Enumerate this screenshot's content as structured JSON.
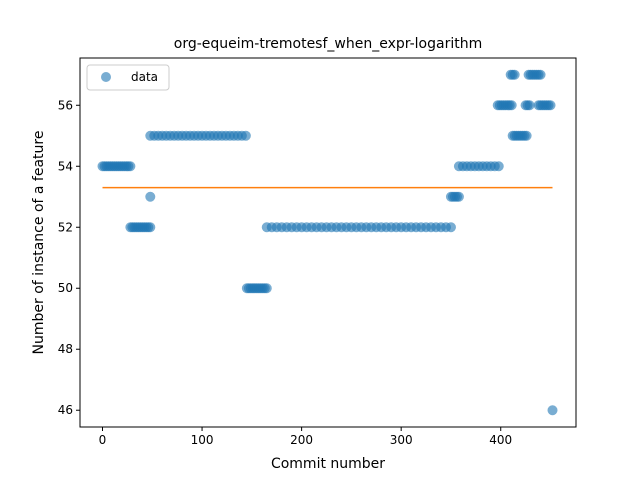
{
  "chart_data": {
    "type": "scatter",
    "title": "org-equeim-tremotesf_when_expr-logarithm",
    "xlabel": "Commit number",
    "ylabel": "Number of instance of a feature",
    "xlim": [
      -22.6,
      475.6
    ],
    "ylim": [
      45.45,
      57.55
    ],
    "xticks": [
      0,
      100,
      200,
      300,
      400
    ],
    "yticks": [
      46,
      48,
      50,
      52,
      54,
      56
    ],
    "legend_position": "upper left",
    "grid": false,
    "series": [
      {
        "name": "data",
        "kind": "points",
        "color": "#1f77b4",
        "x": [
          0,
          2,
          4,
          6,
          8,
          10,
          12,
          14,
          16,
          18,
          20,
          22,
          24,
          26,
          28,
          28,
          30,
          32,
          34,
          36,
          38,
          40,
          42,
          44,
          46,
          48,
          48,
          48,
          52,
          56,
          60,
          64,
          68,
          72,
          76,
          80,
          84,
          88,
          92,
          96,
          100,
          104,
          108,
          112,
          116,
          120,
          124,
          128,
          132,
          136,
          140,
          144,
          145,
          147,
          149,
          151,
          153,
          155,
          157,
          159,
          161,
          163,
          165,
          165,
          170,
          175,
          180,
          185,
          190,
          195,
          200,
          205,
          210,
          215,
          220,
          225,
          230,
          235,
          240,
          245,
          250,
          255,
          260,
          265,
          270,
          275,
          280,
          285,
          290,
          295,
          300,
          305,
          310,
          315,
          320,
          325,
          330,
          335,
          340,
          345,
          350,
          350,
          352,
          354,
          356,
          358,
          358,
          362,
          366,
          370,
          374,
          378,
          382,
          386,
          390,
          394,
          398,
          397,
          399,
          401,
          403,
          405,
          407,
          409,
          411,
          410,
          412,
          414,
          412,
          414,
          416,
          418,
          420,
          422,
          424,
          426,
          425,
          427,
          429,
          428,
          430,
          432,
          434,
          436,
          438,
          440,
          438,
          440,
          442,
          444,
          446,
          448,
          450,
          452
        ],
        "y": [
          54,
          54,
          54,
          54,
          54,
          54,
          54,
          54,
          54,
          54,
          54,
          54,
          54,
          54,
          54,
          52,
          52,
          52,
          52,
          52,
          52,
          52,
          52,
          52,
          52,
          52,
          53,
          55,
          55,
          55,
          55,
          55,
          55,
          55,
          55,
          55,
          55,
          55,
          55,
          55,
          55,
          55,
          55,
          55,
          55,
          55,
          55,
          55,
          55,
          55,
          55,
          55,
          50,
          50,
          50,
          50,
          50,
          50,
          50,
          50,
          50,
          50,
          50,
          52,
          52,
          52,
          52,
          52,
          52,
          52,
          52,
          52,
          52,
          52,
          52,
          52,
          52,
          52,
          52,
          52,
          52,
          52,
          52,
          52,
          52,
          52,
          52,
          52,
          52,
          52,
          52,
          52,
          52,
          52,
          52,
          52,
          52,
          52,
          52,
          52,
          52,
          53,
          53,
          53,
          53,
          53,
          54,
          54,
          54,
          54,
          54,
          54,
          54,
          54,
          54,
          54,
          54,
          56,
          56,
          56,
          56,
          56,
          56,
          56,
          56,
          57,
          57,
          57,
          55,
          55,
          55,
          55,
          55,
          55,
          55,
          55,
          56,
          56,
          56,
          57,
          57,
          57,
          57,
          57,
          57,
          57,
          56,
          56,
          56,
          56,
          56,
          56,
          56,
          46
        ]
      },
      {
        "name": "",
        "kind": "line",
        "color": "#ff7f0e",
        "x": [
          0,
          452
        ],
        "y": [
          53.3,
          53.3
        ]
      }
    ]
  }
}
